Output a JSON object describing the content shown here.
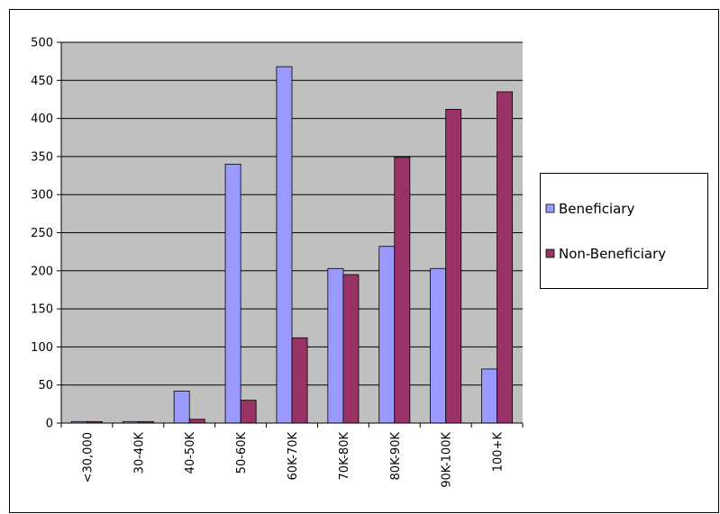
{
  "chart_data": {
    "type": "bar",
    "categories": [
      "<30,000",
      "30-40K",
      "40-50K",
      "50-60K",
      "60K-70K",
      "70K-80K",
      "80K-90K",
      "90K-100K",
      "100+K"
    ],
    "series": [
      {
        "name": "Beneficiary",
        "color": "#9999ff",
        "values": [
          2,
          2,
          42,
          340,
          468,
          203,
          232,
          203,
          71
        ]
      },
      {
        "name": "Non-Beneficiary",
        "color": "#993366",
        "values": [
          2,
          2,
          5,
          30,
          112,
          195,
          349,
          412,
          435
        ]
      }
    ],
    "ylim": [
      0,
      500
    ],
    "yticks": [
      0,
      50,
      100,
      150,
      200,
      250,
      300,
      350,
      400,
      450,
      500
    ],
    "grid": true,
    "legend": "right"
  }
}
